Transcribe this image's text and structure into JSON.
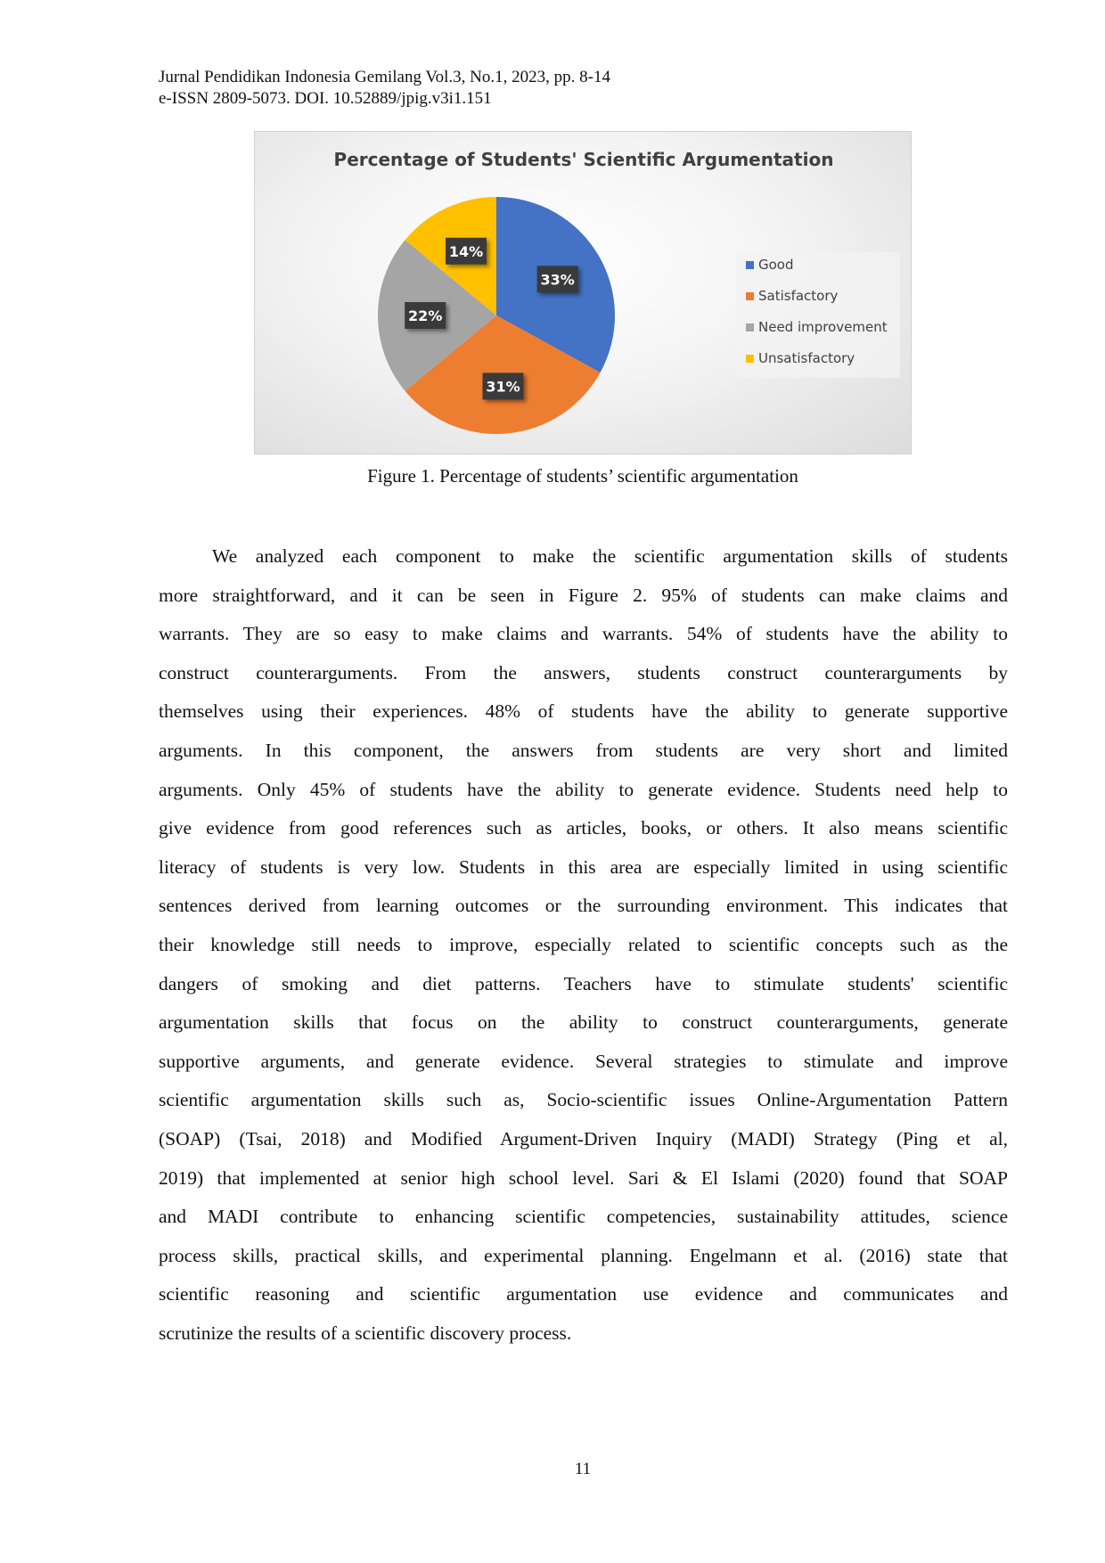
{
  "header": {
    "line1": "Jurnal Pendidikan Indonesia Gemilang Vol.3, No.1, 2023, pp. 8-14",
    "line2": "e-ISSN 2809-5073. DOI. 10.52889/jpig.v3i1.151"
  },
  "chart_data": {
    "type": "pie",
    "title": "Percentage of Students' Scientific Argumentation",
    "categories": [
      "Good",
      "Satisfactory",
      "Need improvement",
      "Unsatisfactory"
    ],
    "values": [
      33,
      31,
      22,
      14
    ],
    "labels": [
      "33%",
      "31%",
      "22%",
      "14%"
    ],
    "colors": [
      "#4472C4",
      "#ED7D31",
      "#A5A5A5",
      "#FFC000"
    ],
    "start": "top",
    "direction": "clockwise",
    "legend_position": "right"
  },
  "caption": "Figure 1. Percentage of students’ scientific argumentation",
  "body_lines": [
    "We analyzed each component to make the scientific argumentation skills of students",
    "more straightforward, and it can be seen in Figure 2. 95% of students can make claims and",
    "warrants. They are so easy to make claims and warrants. 54% of students have the ability to",
    "construct counterarguments. From the answers, students construct counterarguments by",
    "themselves using their experiences. 48% of students have the ability to generate supportive",
    "arguments. In this component, the answers from students are very short and limited",
    "arguments. Only 45% of students have the ability to generate evidence. Students need help to",
    "give evidence from good references such as articles, books, or others. It also means scientific",
    "literacy of students is very low. Students in this area are especially limited in using scientific",
    "sentences derived from learning outcomes or the surrounding environment. This indicates that",
    "their knowledge still needs to improve, especially related to scientific concepts such as the",
    "dangers of smoking and diet patterns. Teachers have to stimulate students' scientific",
    "argumentation skills that focus on the ability to construct counterarguments, generate",
    "supportive arguments, and generate evidence. Several strategies to stimulate and improve",
    "scientific argumentation skills such as, Socio-scientific issues Online-Argumentation Pattern",
    "(SOAP) (Tsai, 2018) and Modified Argument-Driven Inquiry (MADI) Strategy (Ping et al,",
    "2019) that implemented at senior high school level. Sari & El Islami (2020) found that SOAP",
    "and MADI contribute to enhancing scientific competencies, sustainability attitudes, science",
    "process skills, practical skills, and experimental planning. Engelmann et al. (2016) state that",
    "scientific reasoning and scientific argumentation use evidence and communicates and",
    "scrutinize the results of a scientific discovery process."
  ],
  "page_number": "11"
}
